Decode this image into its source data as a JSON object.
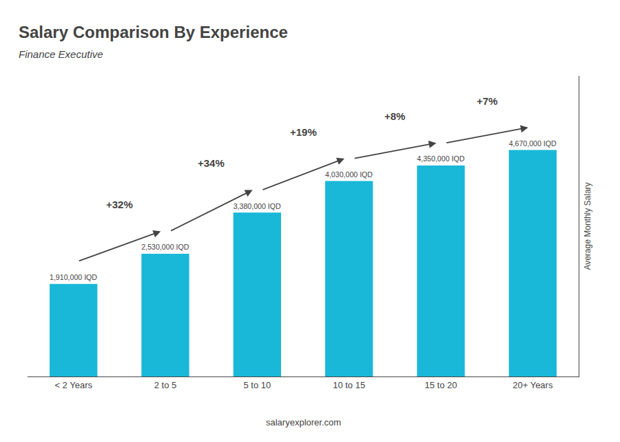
{
  "chart_data": {
    "type": "bar",
    "title": "Salary Comparison By Experience",
    "subtitle": "Finance Executive",
    "ylabel": "Average Monthly Salary",
    "annotations": [
      "salaryexplorer.com"
    ],
    "categories": [
      "< 2 Years",
      "2 to 5",
      "5 to 10",
      "10 to 15",
      "15 to 20",
      "20+ Years"
    ],
    "values": [
      1910000,
      2530000,
      3380000,
      4030000,
      4350000,
      4670000
    ],
    "value_labels": [
      "1,910,000 IQD",
      "2,530,000 IQD",
      "3,380,000 IQD",
      "4,030,000 IQD",
      "4,350,000 IQD",
      "4,670,000 IQD"
    ],
    "change_labels": [
      null,
      "+32%",
      "+34%",
      "+19%",
      "+8%",
      "+7%"
    ],
    "color": "#1ab8d8",
    "ylim": [
      0,
      6200000
    ],
    "data_labels": true,
    "tick_labels": "x",
    "grid": false
  }
}
